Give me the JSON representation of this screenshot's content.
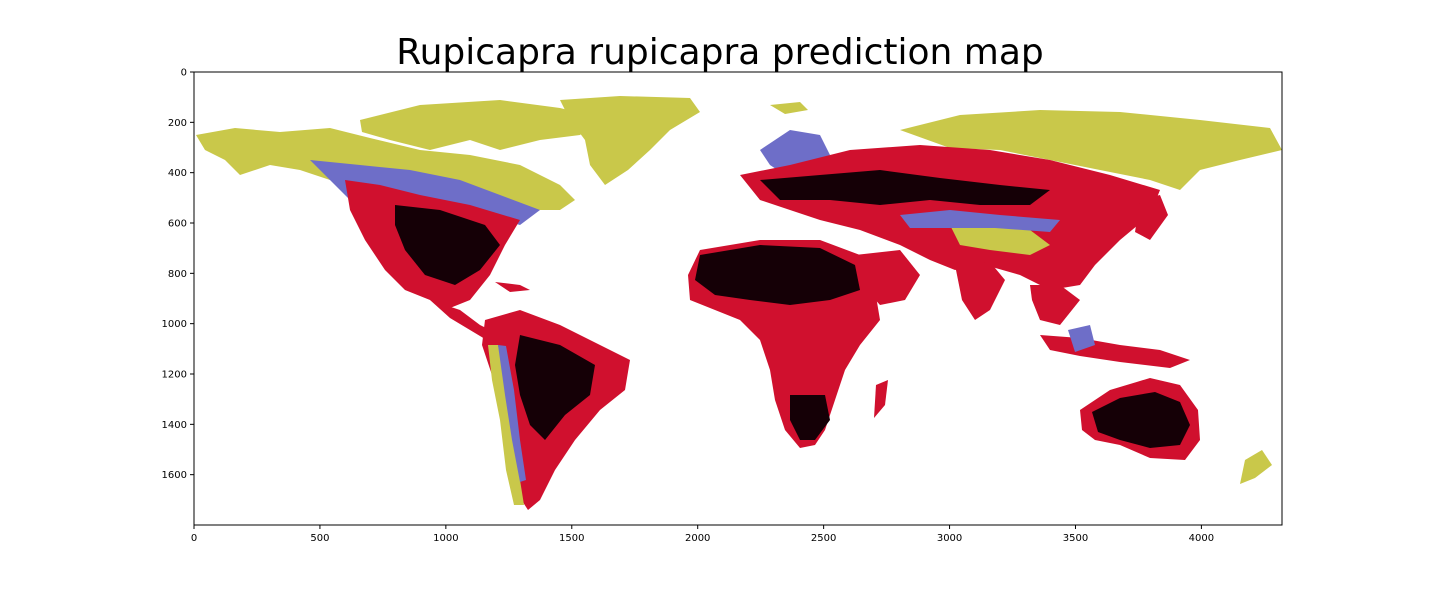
{
  "figure": {
    "title": "Rupicapra rupicapra prediction map"
  },
  "chart_data": {
    "type": "heatmap",
    "title": "Rupicapra rupicapra prediction map",
    "xlabel": "",
    "ylabel": "",
    "xlim": [
      0,
      4320
    ],
    "ylim": [
      1800,
      0
    ],
    "x_ticks": [
      0,
      500,
      1000,
      1500,
      2000,
      2500,
      3000,
      3500,
      4000
    ],
    "x_tick_labels": [
      "0",
      "500",
      "1000",
      "1500",
      "2000",
      "2500",
      "3000",
      "3500",
      "4000"
    ],
    "y_ticks": [
      0,
      200,
      400,
      600,
      800,
      1000,
      1200,
      1400,
      1600
    ],
    "y_tick_labels": [
      "0",
      "200",
      "400",
      "600",
      "800",
      "1000",
      "1200",
      "1400",
      "1600"
    ],
    "grid": false,
    "colors": {
      "ocean_background": "#ffffff",
      "high_latitude_yellow": "#c9c84a",
      "transition_blue": "#6e6ec8",
      "mid_red": "#d0102e",
      "core_black": "#150006"
    }
  }
}
